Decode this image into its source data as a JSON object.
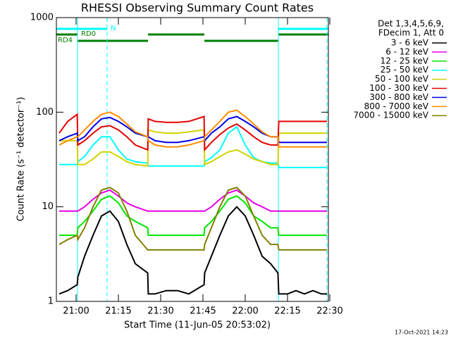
{
  "chart_data": {
    "type": "line",
    "title": "RHESSI Observing Summary Count Rates",
    "x_label": "Start Time (11-Jun-05 20:53:02)",
    "y_label": "Count Rate (s⁻¹ detector⁻¹)",
    "legend_header": [
      "Det 1,3,4,5,6,9,",
      "FDecim 1, Att 0"
    ],
    "flags": [
      "N",
      "RD0",
      "RD4"
    ],
    "footer": "17-Oct-2021 14:23",
    "log_y": true,
    "xlim": [
      -7,
      89.5
    ],
    "xticks": [
      {
        "value": 0,
        "label": "21:00"
      },
      {
        "value": 15,
        "label": "21:15"
      },
      {
        "value": 30,
        "label": "21:30"
      },
      {
        "value": 45,
        "label": "21:45"
      },
      {
        "value": 60,
        "label": "22:00"
      },
      {
        "value": 75,
        "label": "22:15"
      },
      {
        "value": 90,
        "label": "22:30"
      }
    ],
    "ylim": [
      1,
      1000
    ],
    "yticks": [
      1,
      10,
      100,
      1000
    ],
    "x": [
      -6,
      -3,
      0.4,
      0.6,
      3,
      6,
      9,
      12,
      15,
      18,
      21,
      25.4,
      25.6,
      28,
      32,
      36,
      40,
      45.4,
      45.6,
      48,
      51,
      54,
      57,
      60,
      63,
      66,
      69,
      71.6,
      71.9,
      75,
      78,
      81,
      84,
      87,
      89
    ],
    "series": [
      {
        "name": "3 - 6 keV",
        "color": "#000000",
        "values": [
          1.2,
          1.3,
          1.5,
          1.8,
          3,
          5,
          8,
          9,
          7,
          4,
          2.5,
          2,
          1.2,
          1.2,
          1.3,
          1.3,
          1.2,
          1.5,
          2,
          3,
          5,
          8,
          10,
          8,
          5,
          3,
          2.5,
          2,
          1.2,
          1.2,
          1.3,
          1.2,
          1.3,
          1.2,
          1.2
        ]
      },
      {
        "name": "6 - 12 keV",
        "color": "#e600e6",
        "values": [
          9,
          9,
          9,
          9,
          10,
          12,
          14,
          15,
          13,
          11,
          10,
          9,
          9,
          9,
          9,
          9,
          9,
          9,
          9,
          10,
          12,
          14,
          15,
          13,
          11,
          10,
          9,
          9,
          9,
          9,
          9,
          9,
          9,
          9,
          9
        ]
      },
      {
        "name": "12 - 25 keV",
        "color": "#00e600",
        "values": [
          5,
          5,
          5,
          6,
          7,
          9,
          12,
          13,
          11,
          8,
          7,
          6,
          5,
          5,
          5,
          5,
          5,
          5,
          6,
          7,
          9,
          12,
          13,
          11,
          8,
          7,
          6,
          6,
          5,
          5,
          5,
          5,
          5,
          5,
          5
        ]
      },
      {
        "name": "25 - 50 keV",
        "color": "#00ffff",
        "values": [
          28,
          28,
          28,
          30,
          34,
          45,
          55,
          55,
          40,
          32,
          30,
          29,
          27,
          27,
          27,
          27,
          27,
          27,
          30,
          33,
          40,
          60,
          70,
          45,
          33,
          30,
          29,
          29,
          26,
          26,
          26,
          26,
          26,
          26,
          26
        ]
      },
      {
        "name": "50 - 100 keV",
        "color": "#d2d200",
        "values": [
          50,
          50,
          50,
          28,
          28,
          32,
          38,
          38,
          34,
          30,
          28,
          27,
          65,
          62,
          60,
          60,
          62,
          65,
          28,
          30,
          34,
          38,
          40,
          36,
          32,
          30,
          28,
          28,
          60,
          60,
          60,
          60,
          60,
          60,
          60
        ]
      },
      {
        "name": "100 - 300 keV",
        "color": "#e60000",
        "values": [
          60,
          80,
          95,
          45,
          50,
          60,
          70,
          72,
          65,
          55,
          45,
          40,
          85,
          80,
          78,
          78,
          80,
          90,
          40,
          48,
          58,
          68,
          75,
          65,
          55,
          48,
          45,
          45,
          80,
          80,
          80,
          80,
          80,
          80,
          80
        ]
      },
      {
        "name": "300 - 800 keV",
        "color": "#0000e6",
        "values": [
          50,
          55,
          60,
          50,
          55,
          70,
          85,
          88,
          80,
          70,
          60,
          55,
          55,
          50,
          48,
          48,
          50,
          55,
          50,
          60,
          70,
          85,
          90,
          80,
          70,
          60,
          55,
          55,
          48,
          48,
          48,
          48,
          48,
          48,
          48
        ]
      },
      {
        "name": "800 - 7000 keV",
        "color": "#ff8c00",
        "values": [
          45,
          50,
          55,
          55,
          65,
          80,
          95,
          100,
          90,
          75,
          62,
          55,
          50,
          45,
          43,
          43,
          45,
          50,
          55,
          65,
          80,
          100,
          105,
          90,
          75,
          62,
          55,
          55,
          43,
          43,
          43,
          43,
          43,
          43,
          43
        ]
      },
      {
        "name": "7000 - 15000 keV",
        "color": "#808000",
        "values": [
          4,
          4.5,
          5,
          4.5,
          6,
          10,
          15,
          16,
          14,
          9,
          5,
          3.5,
          3.5,
          3.5,
          3.5,
          3.5,
          3.5,
          3.5,
          4,
          6,
          10,
          15,
          16,
          13,
          8,
          5,
          4,
          4,
          3.5,
          3.5,
          3.5,
          3.5,
          3.5,
          3.5,
          3.5
        ]
      }
    ]
  }
}
